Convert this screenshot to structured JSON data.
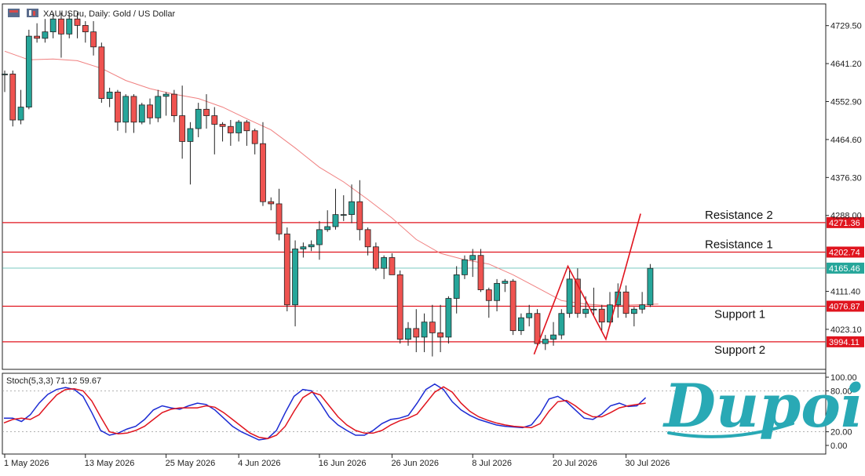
{
  "chart_title": "XAUUSDu, Daily:  Gold / US Dollar",
  "stoch_title": "Stoch(5,3,3) 71.12 59.67",
  "logo_text": "Dupoin",
  "colors": {
    "bull": "#26a69a",
    "bear": "#ef5350",
    "level": "#e0141e",
    "ma": "#f08080",
    "stoch_k": "#1c2bd3",
    "stoch_d": "#e0141e",
    "current": "#26a69a",
    "logo": "#29a9b5"
  },
  "chart_data": {
    "type": "candlestick",
    "symbol": "XAUUSDu",
    "timeframe": "Daily",
    "price_axis_ticks": [
      "4729.50",
      "4641.20",
      "4552.90",
      "4464.60",
      "4376.30",
      "4288.00",
      "4111.40",
      "4023.10"
    ],
    "price_axis_values": [
      4729.5,
      4641.2,
      4552.9,
      4464.6,
      4376.3,
      4288.0,
      4111.4,
      4023.1
    ],
    "date_ticks": [
      "1 May 2026",
      "13 May 2026",
      "25 May 2026",
      "4 Jun 2026",
      "16 Jun 2026",
      "26 Jun 2026",
      "8 Jul 2026",
      "20 Jul 2026",
      "30 Jul 2026"
    ],
    "date_tick_index": [
      0,
      10,
      20,
      29,
      39,
      48,
      58,
      68,
      77
    ],
    "ylim": [
      3930,
      4780
    ],
    "current_price": 4165.46,
    "current_price_label": "4165.46",
    "levels": [
      {
        "name": "Resistance 2",
        "value": 4271.36,
        "tag": "4271.36"
      },
      {
        "name": "Resistance 1",
        "value": 4202.74,
        "tag": "4202.74"
      },
      {
        "name": "Support 1",
        "value": 4076.87,
        "tag": "4076.87"
      },
      {
        "name": "Support 2",
        "value": 3994.11,
        "tag": "3994.11"
      }
    ],
    "candles": [
      [
        4615,
        4625,
        4575,
        4617
      ],
      [
        4617,
        4625,
        4495,
        4510
      ],
      [
        4510,
        4580,
        4500,
        4540
      ],
      [
        4540,
        4720,
        4535,
        4705
      ],
      [
        4705,
        4735,
        4690,
        4700
      ],
      [
        4700,
        4745,
        4690,
        4715
      ],
      [
        4715,
        4760,
        4700,
        4745
      ],
      [
        4745,
        4760,
        4655,
        4710
      ],
      [
        4710,
        4760,
        4700,
        4745
      ],
      [
        4745,
        4760,
        4700,
        4730
      ],
      [
        4730,
        4740,
        4690,
        4715
      ],
      [
        4715,
        4740,
        4660,
        4680
      ],
      [
        4680,
        4690,
        4550,
        4560
      ],
      [
        4560,
        4585,
        4540,
        4575
      ],
      [
        4575,
        4580,
        4485,
        4505
      ],
      [
        4505,
        4570,
        4480,
        4565
      ],
      [
        4565,
        4570,
        4480,
        4505
      ],
      [
        4505,
        4550,
        4500,
        4545
      ],
      [
        4545,
        4560,
        4500,
        4515
      ],
      [
        4515,
        4580,
        4505,
        4565
      ],
      [
        4565,
        4575,
        4520,
        4570
      ],
      [
        4570,
        4580,
        4505,
        4520
      ],
      [
        4520,
        4590,
        4420,
        4460
      ],
      [
        4460,
        4505,
        4360,
        4490
      ],
      [
        4490,
        4550,
        4470,
        4535
      ],
      [
        4535,
        4570,
        4490,
        4520
      ],
      [
        4520,
        4540,
        4430,
        4500
      ],
      [
        4500,
        4505,
        4460,
        4495
      ],
      [
        4495,
        4510,
        4450,
        4480
      ],
      [
        4480,
        4510,
        4460,
        4505
      ],
      [
        4505,
        4510,
        4450,
        4485
      ],
      [
        4485,
        4490,
        4430,
        4455
      ],
      [
        4455,
        4505,
        4310,
        4320
      ],
      [
        4320,
        4330,
        4300,
        4315
      ],
      [
        4315,
        4350,
        4230,
        4245
      ],
      [
        4245,
        4260,
        4065,
        4080
      ],
      [
        4080,
        4230,
        4030,
        4210
      ],
      [
        4210,
        4225,
        4190,
        4215
      ],
      [
        4215,
        4230,
        4205,
        4220
      ],
      [
        4220,
        4275,
        4185,
        4255
      ],
      [
        4255,
        4300,
        4250,
        4262
      ],
      [
        4262,
        4350,
        4255,
        4290
      ],
      [
        4290,
        4335,
        4275,
        4290
      ],
      [
        4290,
        4360,
        4270,
        4320
      ],
      [
        4320,
        4370,
        4230,
        4255
      ],
      [
        4255,
        4260,
        4195,
        4215
      ],
      [
        4215,
        4225,
        4160,
        4165
      ],
      [
        4165,
        4195,
        4140,
        4190
      ],
      [
        4190,
        4200,
        4150,
        4150
      ],
      [
        4150,
        4160,
        3990,
        4000
      ],
      [
        4000,
        4040,
        3985,
        4025
      ],
      [
        4025,
        4070,
        3970,
        4005
      ],
      [
        4005,
        4060,
        3970,
        4040
      ],
      [
        4040,
        4080,
        3960,
        4015
      ],
      [
        4015,
        4080,
        3970,
        4005
      ],
      [
        4005,
        4100,
        3990,
        4095
      ],
      [
        4095,
        4170,
        4060,
        4150
      ],
      [
        4150,
        4195,
        4140,
        4185
      ],
      [
        4185,
        4210,
        4145,
        4195
      ],
      [
        4195,
        4210,
        4110,
        4115
      ],
      [
        4115,
        4120,
        4050,
        4090
      ],
      [
        4090,
        4140,
        4065,
        4130
      ],
      [
        4130,
        4140,
        4110,
        4135
      ],
      [
        4135,
        4140,
        4010,
        4020
      ],
      [
        4020,
        4060,
        4010,
        4050
      ],
      [
        4050,
        4080,
        4030,
        4060
      ],
      [
        4060,
        4070,
        3985,
        3990
      ],
      [
        3990,
        4010,
        3975,
        4000
      ],
      [
        4000,
        4040,
        3985,
        4010
      ],
      [
        4010,
        4070,
        4000,
        4060
      ],
      [
        4060,
        4160,
        4050,
        4140
      ],
      [
        4140,
        4165,
        4050,
        4060
      ],
      [
        4060,
        4100,
        4050,
        4070
      ],
      [
        4070,
        4120,
        4055,
        4070
      ],
      [
        4070,
        4080,
        4020,
        4040
      ],
      [
        4040,
        4110,
        4030,
        4080
      ],
      [
        4080,
        4130,
        4050,
        4110
      ],
      [
        4110,
        4125,
        4050,
        4060
      ],
      [
        4060,
        4075,
        4030,
        4070
      ],
      [
        4070,
        4110,
        4060,
        4080
      ],
      [
        4080,
        4175,
        4075,
        4165
      ]
    ],
    "ma": [
      [
        0,
        4670
      ],
      [
        3,
        4650
      ],
      [
        6,
        4652
      ],
      [
        9,
        4648
      ],
      [
        12,
        4630
      ],
      [
        15,
        4602
      ],
      [
        18,
        4583
      ],
      [
        21,
        4570
      ],
      [
        24,
        4560
      ],
      [
        27,
        4540
      ],
      [
        30,
        4513
      ],
      [
        33,
        4487
      ],
      [
        36,
        4445
      ],
      [
        39,
        4400
      ],
      [
        42,
        4366
      ],
      [
        45,
        4325
      ],
      [
        48,
        4282
      ],
      [
        51,
        4232
      ],
      [
        54,
        4200
      ],
      [
        57,
        4185
      ],
      [
        60,
        4175
      ],
      [
        63,
        4150
      ],
      [
        66,
        4120
      ],
      [
        69,
        4090
      ],
      [
        72,
        4082
      ],
      [
        75,
        4078
      ],
      [
        78,
        4080
      ],
      [
        81,
        4082
      ]
    ],
    "zigzag": [
      {
        "i": 65.6,
        "v": 3965
      },
      {
        "i": 69.8,
        "v": 4170
      },
      {
        "i": 74.5,
        "v": 4000
      },
      {
        "i": 78.8,
        "v": 4292
      }
    ],
    "stoch": {
      "yticks": [
        "100.00",
        "80.00",
        "20.00",
        "0.00"
      ],
      "ytick_values": [
        100,
        80,
        20,
        0
      ],
      "k": [
        [
          0,
          40
        ],
        [
          1,
          40
        ],
        [
          2,
          35
        ],
        [
          3,
          45
        ],
        [
          4,
          62
        ],
        [
          5,
          75
        ],
        [
          6,
          82
        ],
        [
          7,
          85
        ],
        [
          8,
          82
        ],
        [
          9,
          72
        ],
        [
          10,
          48
        ],
        [
          11,
          22
        ],
        [
          12,
          15
        ],
        [
          13,
          18
        ],
        [
          14,
          24
        ],
        [
          15,
          28
        ],
        [
          16,
          38
        ],
        [
          17,
          52
        ],
        [
          18,
          58
        ],
        [
          19,
          55
        ],
        [
          20,
          53
        ],
        [
          21,
          58
        ],
        [
          22,
          62
        ],
        [
          23,
          60
        ],
        [
          24,
          52
        ],
        [
          25,
          40
        ],
        [
          26,
          28
        ],
        [
          27,
          20
        ],
        [
          28,
          14
        ],
        [
          29,
          8
        ],
        [
          30,
          10
        ],
        [
          31,
          22
        ],
        [
          32,
          48
        ],
        [
          33,
          72
        ],
        [
          34,
          82
        ],
        [
          35,
          80
        ],
        [
          36,
          62
        ],
        [
          37,
          42
        ],
        [
          38,
          30
        ],
        [
          39,
          22
        ],
        [
          40,
          15
        ],
        [
          41,
          15
        ],
        [
          42,
          22
        ],
        [
          43,
          32
        ],
        [
          44,
          38
        ],
        [
          45,
          40
        ],
        [
          46,
          44
        ],
        [
          47,
          62
        ],
        [
          48,
          82
        ],
        [
          49,
          90
        ],
        [
          50,
          82
        ],
        [
          51,
          64
        ],
        [
          52,
          52
        ],
        [
          53,
          44
        ],
        [
          54,
          38
        ],
        [
          55,
          34
        ],
        [
          56,
          30
        ],
        [
          57,
          28
        ],
        [
          58,
          27
        ],
        [
          59,
          26
        ],
        [
          60,
          30
        ],
        [
          61,
          46
        ],
        [
          62,
          68
        ],
        [
          63,
          72
        ],
        [
          64,
          64
        ],
        [
          65,
          52
        ],
        [
          66,
          40
        ],
        [
          67,
          38
        ],
        [
          68,
          46
        ],
        [
          69,
          58
        ],
        [
          70,
          62
        ],
        [
          71,
          57
        ],
        [
          72,
          58
        ],
        [
          73,
          70
        ]
      ],
      "d": [
        [
          0,
          33
        ],
        [
          1,
          38
        ],
        [
          2,
          40
        ],
        [
          3,
          38
        ],
        [
          4,
          45
        ],
        [
          5,
          60
        ],
        [
          6,
          74
        ],
        [
          7,
          82
        ],
        [
          8,
          83
        ],
        [
          9,
          80
        ],
        [
          10,
          65
        ],
        [
          11,
          42
        ],
        [
          12,
          20
        ],
        [
          13,
          17
        ],
        [
          14,
          18
        ],
        [
          15,
          22
        ],
        [
          16,
          28
        ],
        [
          17,
          38
        ],
        [
          18,
          48
        ],
        [
          19,
          53
        ],
        [
          20,
          55
        ],
        [
          21,
          55
        ],
        [
          22,
          55
        ],
        [
          23,
          58
        ],
        [
          24,
          56
        ],
        [
          25,
          48
        ],
        [
          26,
          38
        ],
        [
          27,
          28
        ],
        [
          28,
          18
        ],
        [
          29,
          12
        ],
        [
          30,
          10
        ],
        [
          31,
          15
        ],
        [
          32,
          28
        ],
        [
          33,
          50
        ],
        [
          34,
          70
        ],
        [
          35,
          78
        ],
        [
          36,
          74
        ],
        [
          37,
          58
        ],
        [
          38,
          42
        ],
        [
          39,
          30
        ],
        [
          40,
          22
        ],
        [
          41,
          18
        ],
        [
          42,
          18
        ],
        [
          43,
          22
        ],
        [
          44,
          30
        ],
        [
          45,
          36
        ],
        [
          46,
          40
        ],
        [
          47,
          46
        ],
        [
          48,
          62
        ],
        [
          49,
          78
        ],
        [
          50,
          86
        ],
        [
          51,
          78
        ],
        [
          52,
          62
        ],
        [
          53,
          50
        ],
        [
          54,
          42
        ],
        [
          55,
          37
        ],
        [
          56,
          33
        ],
        [
          57,
          30
        ],
        [
          58,
          28
        ],
        [
          59,
          27
        ],
        [
          60,
          26
        ],
        [
          61,
          32
        ],
        [
          62,
          50
        ],
        [
          63,
          64
        ],
        [
          64,
          66
        ],
        [
          65,
          58
        ],
        [
          66,
          48
        ],
        [
          67,
          42
        ],
        [
          68,
          42
        ],
        [
          69,
          48
        ],
        [
          70,
          55
        ],
        [
          71,
          58
        ],
        [
          72,
          60
        ],
        [
          73,
          62
        ]
      ]
    }
  }
}
